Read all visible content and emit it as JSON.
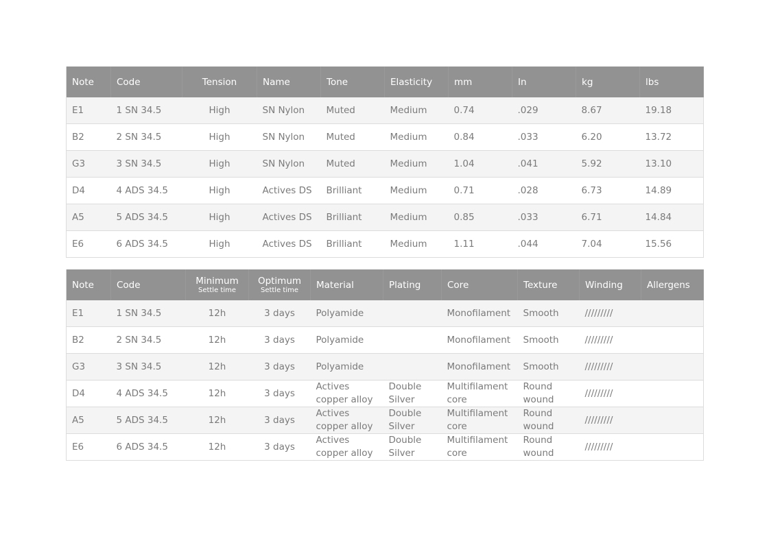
{
  "table1": {
    "headers": [
      "Note",
      "Code",
      "Tension",
      "Name",
      "Tone",
      "Elasticity",
      "mm",
      "In",
      "kg",
      "lbs"
    ],
    "rows": [
      [
        "E1",
        "1 SN 34.5",
        "High",
        "SN Nylon",
        "Muted",
        "Medium",
        "0.74",
        ".029",
        "8.67",
        "19.18"
      ],
      [
        "B2",
        "2 SN 34.5",
        "High",
        "SN Nylon",
        "Muted",
        "Medium",
        "0.84",
        ".033",
        "6.20",
        "13.72"
      ],
      [
        "G3",
        "3 SN 34.5",
        "High",
        "SN Nylon",
        "Muted",
        "Medium",
        "1.04",
        ".041",
        "5.92",
        "13.10"
      ],
      [
        "D4",
        "4 ADS 34.5",
        "High",
        "Actives DS",
        "Brilliant",
        "Medium",
        "0.71",
        ".028",
        "6.73",
        "14.89"
      ],
      [
        "A5",
        "5 ADS 34.5",
        "High",
        "Actives DS",
        "Brilliant",
        "Medium",
        "0.85",
        ".033",
        "6.71",
        "14.84"
      ],
      [
        "E6",
        "6 ADS 34.5",
        "High",
        "Actives DS",
        "Brilliant",
        "Medium",
        "1.11",
        ".044",
        "7.04",
        "15.56"
      ]
    ]
  },
  "table2": {
    "headers": [
      "Note",
      "Code",
      "Minimum",
      "Optimum",
      "Material",
      "Plating",
      "Core",
      "Texture",
      "Winding",
      "Allergens"
    ],
    "subheaders": {
      "min": "Settle time",
      "opt": "Settle time"
    },
    "rows": [
      [
        "E1",
        "1 SN 34.5",
        "12h",
        "3 days",
        "Polyamide",
        "",
        "Monofilament",
        "Smooth",
        "/////////",
        ""
      ],
      [
        "B2",
        "2 SN 34.5",
        "12h",
        "3 days",
        "Polyamide",
        "",
        "Monofilament",
        "Smooth",
        "/////////",
        ""
      ],
      [
        "G3",
        "3 SN 34.5",
        "12h",
        "3 days",
        "Polyamide",
        "",
        "Monofilament",
        "Smooth",
        "/////////",
        ""
      ],
      [
        "D4",
        "4 ADS 34.5",
        "12h",
        "3 days",
        "Actives copper alloy",
        "Double Silver",
        "Multifilament core",
        "Round wound",
        "/////////",
        ""
      ],
      [
        "A5",
        "5 ADS 34.5",
        "12h",
        "3 days",
        "Actives copper alloy",
        "Double Silver",
        "Multifilament core",
        "Round wound",
        "/////////",
        ""
      ],
      [
        "E6",
        "6 ADS 34.5",
        "12h",
        "3 days",
        "Actives copper alloy",
        "Double Silver",
        "Multifilament core",
        "Round wound",
        "/////////",
        ""
      ]
    ]
  },
  "colors": {
    "header_bg": "#929292",
    "header_text": "#ffffff",
    "row_alt": "#f4f4f4",
    "text": "#7a7a7a"
  }
}
